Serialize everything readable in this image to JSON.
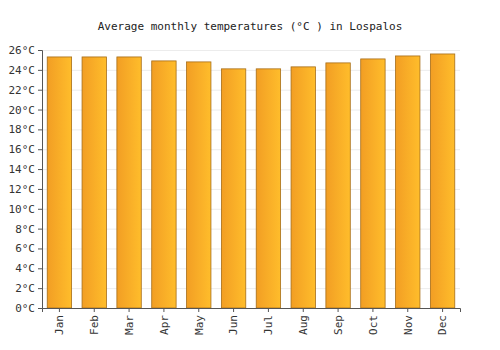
{
  "chart_data": {
    "type": "bar",
    "title": "Average monthly temperatures (°C ) in Lospalos",
    "categories": [
      "Jan",
      "Feb",
      "Mar",
      "Apr",
      "May",
      "Jun",
      "Jul",
      "Aug",
      "Sep",
      "Oct",
      "Nov",
      "Dec"
    ],
    "values": [
      25.3,
      25.3,
      25.3,
      24.9,
      24.8,
      24.1,
      24.1,
      24.3,
      24.7,
      25.1,
      25.4,
      25.6
    ],
    "color": "#ffa726",
    "ylim": [
      0,
      26
    ],
    "yticks": [
      {
        "value": 0,
        "label": "0°C"
      },
      {
        "value": 2,
        "label": "2°C"
      },
      {
        "value": 4,
        "label": "4°C"
      },
      {
        "value": 6,
        "label": "6°C"
      },
      {
        "value": 8,
        "label": "8°C"
      },
      {
        "value": 10,
        "label": "10°C"
      },
      {
        "value": 12,
        "label": "12°C"
      },
      {
        "value": 14,
        "label": "14°C"
      },
      {
        "value": 16,
        "label": "16°C"
      },
      {
        "value": 18,
        "label": "18°C"
      },
      {
        "value": 20,
        "label": "20°C"
      },
      {
        "value": 22,
        "label": "22°C"
      },
      {
        "value": 24,
        "label": "24°C"
      },
      {
        "value": 26,
        "label": "26°C"
      }
    ],
    "grid": true
  }
}
